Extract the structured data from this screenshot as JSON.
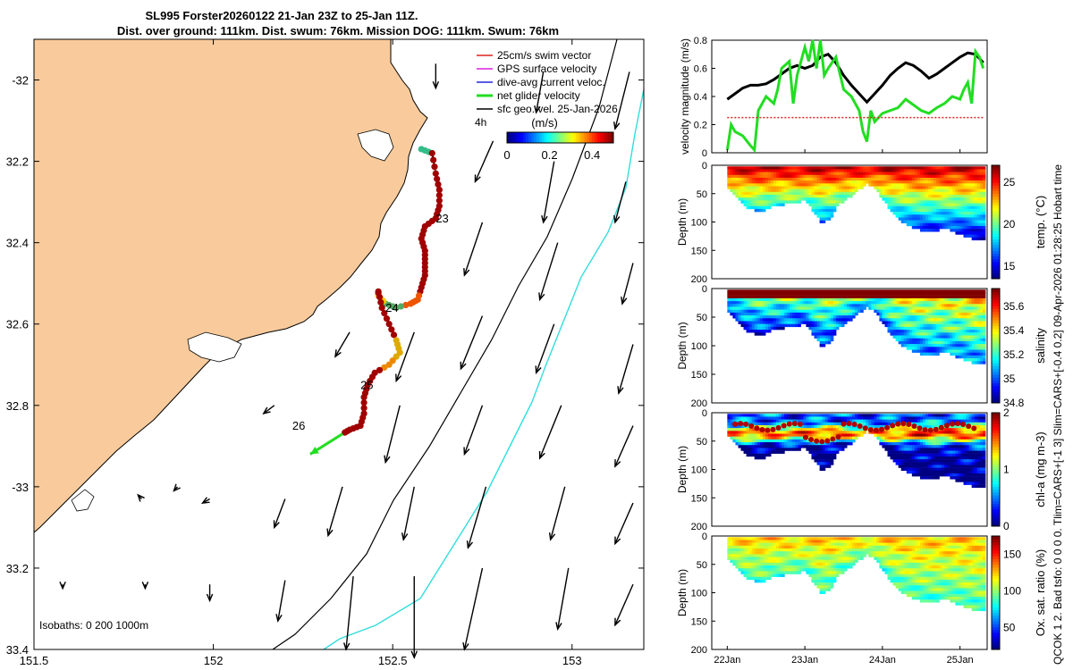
{
  "title": {
    "line1": "SL995 Forster20260122 21-Jan 23Z to 25-Jan 11Z.",
    "line2": "Dist. over ground: 111km. Dist. swum: 76km. Mission DOG: 111km. Swum: 76km"
  },
  "side_note": "QCOK 1  2. Bad tsfo: 0  0  0  0. Tlim=CARS+[-1 3] Slim=CARS+[-0.4 0.2] 09-Apr-2026 01:28:25 Hobart time",
  "colors": {
    "land": "#f9cb9c",
    "isobath_200": "#000000",
    "isobath_1000": "#33dddd",
    "net_glider": "#22dd22",
    "current_black": "#000000"
  },
  "chart_data": [
    {
      "id": "map",
      "type": "map",
      "xlim": [
        151.5,
        153.2
      ],
      "ylim": [
        -33.4,
        -31.9
      ],
      "xticks": [
        151.5,
        152,
        152.5,
        153
      ],
      "xtick_labels": [
        "151.5",
        "152",
        "152.5",
        "153"
      ],
      "yticks": [
        -32,
        -32.2,
        -32.4,
        -32.6,
        -32.8,
        -33,
        -33.2,
        -33.4
      ],
      "ytick_labels": [
        "-32",
        "32.2",
        "32.4",
        "32.6",
        "32.8",
        "-33",
        "33.2",
        "33.4"
      ],
      "legend": [
        {
          "label": "25cm/s swim vector",
          "color": "#dd2222"
        },
        {
          "label": "GPS surface velocity",
          "color": "#dd22dd"
        },
        {
          "label": "dive-avg current veloc.",
          "color": "#2222dd"
        },
        {
          "label": "net glider velocity",
          "color": "#22dd22"
        },
        {
          "label": "sfc geo. vel. 25-Jan-2026",
          "color": "#000000"
        }
      ],
      "legend_extra": "4h",
      "colorbar": {
        "label": "(m/s)",
        "ticks": [
          "0",
          "0.2",
          "0.4"
        ],
        "range": [
          0,
          0.5
        ]
      },
      "isobaths_label": "Isobaths: 0   200  1000m",
      "day_labels": [
        {
          "text": "23",
          "lon": 152.62,
          "lat": -32.35
        },
        {
          "text": "24",
          "lon": 152.48,
          "lat": -32.57
        },
        {
          "text": "25",
          "lon": 152.41,
          "lat": -32.76
        },
        {
          "text": "26",
          "lon": 152.22,
          "lat": -32.86
        }
      ],
      "track": [
        [
          152.58,
          -32.17
        ],
        [
          152.61,
          -32.18
        ],
        [
          152.62,
          -32.23
        ],
        [
          152.63,
          -32.27
        ],
        [
          152.63,
          -32.31
        ],
        [
          152.62,
          -32.34
        ],
        [
          152.59,
          -32.36
        ],
        [
          152.58,
          -32.39
        ],
        [
          152.59,
          -32.42
        ],
        [
          152.59,
          -32.45
        ],
        [
          152.59,
          -32.48
        ],
        [
          152.58,
          -32.51
        ],
        [
          152.57,
          -32.54
        ],
        [
          152.55,
          -32.55
        ],
        [
          152.51,
          -32.56
        ],
        [
          152.48,
          -32.55
        ],
        [
          152.46,
          -32.53
        ],
        [
          152.46,
          -32.52
        ],
        [
          152.47,
          -32.56
        ],
        [
          152.49,
          -32.6
        ],
        [
          152.51,
          -32.64
        ],
        [
          152.52,
          -32.67
        ],
        [
          152.49,
          -32.7
        ],
        [
          152.45,
          -32.72
        ],
        [
          152.43,
          -32.75
        ],
        [
          152.42,
          -32.78
        ],
        [
          152.42,
          -32.82
        ],
        [
          152.41,
          -32.85
        ],
        [
          152.38,
          -32.86
        ],
        [
          152.36,
          -32.87
        ]
      ],
      "net_glider_vector": {
        "from": [
          152.36,
          -32.87
        ],
        "to": [
          152.27,
          -32.92
        ]
      },
      "currents": [
        [
          151.58,
          -33.24,
          0,
          -0.01
        ],
        [
          151.8,
          -33.03,
          -0.01,
          0.01
        ],
        [
          151.81,
          -33.24,
          0,
          -0.01
        ],
        [
          151.99,
          -33.03,
          -0.02,
          -0.01
        ],
        [
          151.99,
          -33.24,
          0,
          -0.04
        ],
        [
          152.17,
          -32.8,
          -0.03,
          -0.02
        ],
        [
          152.2,
          -33.03,
          -0.03,
          -0.07
        ],
        [
          152.2,
          -33.23,
          -0.02,
          -0.1
        ],
        [
          152.38,
          -32.62,
          -0.04,
          -0.06
        ],
        [
          152.36,
          -33.0,
          -0.04,
          -0.12
        ],
        [
          152.39,
          -33.22,
          -0.02,
          -0.18
        ],
        [
          152.56,
          -32.62,
          -0.05,
          -0.12
        ],
        [
          152.52,
          -32.8,
          -0.04,
          -0.14
        ],
        [
          152.56,
          -33.0,
          -0.03,
          -0.13
        ],
        [
          152.56,
          -33.22,
          0.0,
          -0.2
        ],
        [
          152.78,
          -32.15,
          -0.05,
          -0.1
        ],
        [
          152.75,
          -32.35,
          -0.05,
          -0.13
        ],
        [
          152.75,
          -32.58,
          -0.06,
          -0.13
        ],
        [
          152.75,
          -32.8,
          -0.05,
          -0.12
        ],
        [
          152.76,
          -33.0,
          -0.05,
          -0.15
        ],
        [
          152.75,
          -33.2,
          -0.05,
          -0.2
        ],
        [
          152.95,
          -32.2,
          -0.03,
          -0.15
        ],
        [
          152.96,
          -32.4,
          -0.05,
          -0.14
        ],
        [
          152.95,
          -32.6,
          -0.05,
          -0.12
        ],
        [
          152.97,
          -32.8,
          -0.06,
          -0.13
        ],
        [
          152.98,
          -33.0,
          -0.04,
          -0.13
        ],
        [
          152.99,
          -33.2,
          -0.03,
          -0.15
        ],
        [
          153.16,
          -31.98,
          -0.04,
          -0.14
        ],
        [
          153.15,
          -32.25,
          -0.03,
          -0.1
        ],
        [
          153.17,
          -32.45,
          -0.03,
          -0.1
        ],
        [
          153.17,
          -32.65,
          -0.04,
          -0.12
        ],
        [
          153.17,
          -32.85,
          -0.05,
          -0.1
        ],
        [
          153.17,
          -33.04,
          -0.05,
          -0.1
        ],
        [
          153.17,
          -33.24,
          -0.05,
          -0.1
        ],
        [
          152.62,
          -31.96,
          0.0,
          -0.06
        ],
        [
          152.92,
          -31.98,
          -0.02,
          -0.1
        ],
        [
          151.9,
          -33.0,
          -0.01,
          -0.01
        ]
      ]
    },
    {
      "id": "velocity",
      "type": "line",
      "ylabel": "velocity magnitude (m/s)",
      "xlim": [
        21.8,
        25.35
      ],
      "ylim": [
        0,
        0.8
      ],
      "yticks": [
        "0",
        "0.2",
        "0.4",
        "0.6",
        "0.8"
      ],
      "series": [
        {
          "name": "black",
          "color": "#000000",
          "x": [
            22.0,
            22.1,
            22.2,
            22.3,
            22.4,
            22.5,
            22.6,
            22.7,
            22.8,
            22.9,
            23.0,
            23.1,
            23.2,
            23.3,
            23.4,
            23.5,
            23.6,
            23.7,
            23.8,
            23.9,
            24.0,
            24.1,
            24.2,
            24.3,
            24.4,
            24.5,
            24.6,
            24.7,
            24.8,
            24.9,
            25.0,
            25.1,
            25.2,
            25.3
          ],
          "y": [
            0.38,
            0.42,
            0.46,
            0.48,
            0.48,
            0.49,
            0.52,
            0.56,
            0.6,
            0.62,
            0.6,
            0.62,
            0.68,
            0.7,
            0.64,
            0.55,
            0.48,
            0.42,
            0.36,
            0.42,
            0.48,
            0.55,
            0.6,
            0.64,
            0.62,
            0.58,
            0.53,
            0.56,
            0.6,
            0.64,
            0.68,
            0.71,
            0.7,
            0.64
          ]
        },
        {
          "name": "green",
          "color": "#22dd22",
          "x": [
            22.0,
            22.05,
            22.1,
            22.2,
            22.3,
            22.35,
            22.4,
            22.5,
            22.6,
            22.65,
            22.7,
            22.8,
            22.85,
            22.9,
            23.0,
            23.05,
            23.1,
            23.15,
            23.2,
            23.25,
            23.3,
            23.4,
            23.5,
            23.6,
            23.7,
            23.75,
            23.8,
            23.85,
            23.9,
            24.0,
            24.1,
            24.2,
            24.3,
            24.4,
            24.5,
            24.6,
            24.7,
            24.8,
            24.9,
            25.0,
            25.05,
            25.1,
            25.15,
            25.2,
            25.25,
            25.3
          ],
          "y": [
            0.02,
            0.2,
            0.15,
            0.12,
            0.05,
            0.02,
            0.3,
            0.4,
            0.35,
            0.45,
            0.6,
            0.65,
            0.35,
            0.55,
            0.75,
            0.65,
            0.8,
            0.6,
            0.8,
            0.55,
            0.6,
            0.68,
            0.45,
            0.4,
            0.3,
            0.15,
            0.08,
            0.3,
            0.22,
            0.28,
            0.3,
            0.32,
            0.38,
            0.34,
            0.3,
            0.28,
            0.32,
            0.35,
            0.4,
            0.38,
            0.45,
            0.5,
            0.35,
            0.72,
            0.68,
            0.6
          ]
        },
        {
          "name": "red",
          "color": "#dd2222",
          "dashed": true,
          "x": [
            22.0,
            25.3
          ],
          "y": [
            0.25,
            0.25
          ]
        }
      ]
    },
    {
      "id": "temp",
      "type": "heatmap",
      "ylabel": "Depth (m)",
      "colorbar_label": "temp. (°C)",
      "range": [
        13.5,
        27
      ],
      "cticks": [
        "25",
        "20",
        "15"
      ],
      "cvals": [
        25,
        20,
        15
      ],
      "yticks": [
        "0",
        "50",
        "100",
        "150",
        "200"
      ]
    },
    {
      "id": "salinity",
      "type": "heatmap",
      "ylabel": "Depth (m)",
      "colorbar_label": "salinity",
      "range": [
        34.8,
        35.75
      ],
      "cticks": [
        "35.6",
        "35.4",
        "35.2",
        "35",
        "34.8"
      ],
      "cvals": [
        35.6,
        35.4,
        35.2,
        35,
        34.8
      ],
      "yticks": [
        "0",
        "50",
        "100",
        "150",
        "200"
      ]
    },
    {
      "id": "chla",
      "type": "heatmap",
      "ylabel": "Depth (m)",
      "colorbar_label": "chl-a (mg m-3)",
      "range": [
        0,
        2
      ],
      "cticks": [
        "2",
        "1",
        "0"
      ],
      "cvals": [
        2,
        1,
        0
      ],
      "yticks": [
        "0",
        "50",
        "100",
        "150",
        "200"
      ]
    },
    {
      "id": "oxygen",
      "type": "heatmap",
      "ylabel": "Depth (m)",
      "colorbar_label": "Ox. sat. ratio (%)",
      "range": [
        20,
        175
      ],
      "cticks": [
        "150",
        "100",
        "50"
      ],
      "cvals": [
        150,
        100,
        50
      ],
      "yticks": [
        "0",
        "50",
        "100",
        "150",
        "200"
      ],
      "xticks": [
        22,
        23,
        24,
        25
      ],
      "xtick_labels": [
        "22Jan",
        "23Jan",
        "24Jan",
        "25Jan"
      ]
    }
  ],
  "section_profile": {
    "x": [
      22.0,
      22.2,
      22.4,
      22.6,
      22.8,
      23.0,
      23.1,
      23.2,
      23.3,
      23.4,
      23.5,
      23.6,
      23.7,
      23.8,
      23.9,
      24.0,
      24.1,
      24.2,
      24.4,
      24.6,
      24.8,
      25.0,
      25.2,
      25.3
    ],
    "depth": [
      40,
      70,
      80,
      70,
      65,
      60,
      80,
      100,
      95,
      70,
      60,
      50,
      40,
      30,
      40,
      60,
      80,
      95,
      110,
      115,
      110,
      120,
      130,
      130
    ]
  }
}
